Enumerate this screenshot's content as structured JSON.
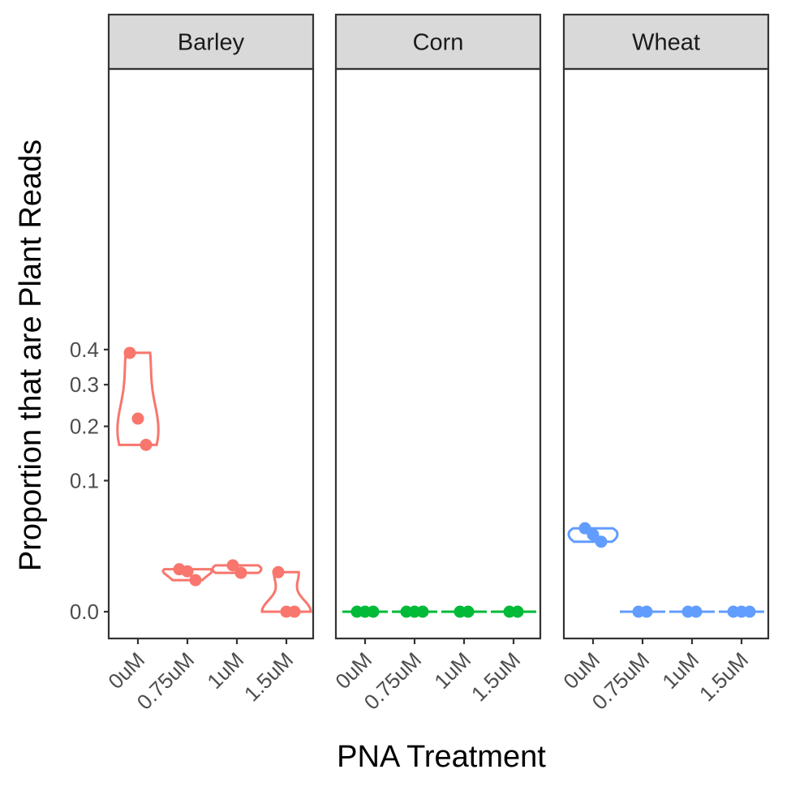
{
  "chart_data": {
    "type": "scatter",
    "overlay": "violin",
    "facets": [
      "Barley",
      "Corn",
      "Wheat"
    ],
    "categories": [
      "0uM",
      "0.75uM",
      "1uM",
      "1.5uM"
    ],
    "xlabel": "PNA Treatment",
    "ylabel": "Proportion that are Plant Reads",
    "y_scale": "sqrt",
    "ylim": [
      0,
      0.41
    ],
    "yticks": [
      0.0,
      0.1,
      0.2,
      0.3,
      0.4
    ],
    "ytick_labels": [
      "0.0",
      "0.1",
      "0.2",
      "0.3",
      "0.4"
    ],
    "grid": false,
    "legend": "none",
    "colors": {
      "Barley": "#F8766D",
      "Corn": "#00BA38",
      "Wheat": "#619CFF"
    },
    "series": [
      {
        "facet": "Barley",
        "groups": [
          {
            "category": "0uM",
            "points": [
              0.39,
              0.217,
              0.162
            ]
          },
          {
            "category": "0.75uM",
            "points": [
              0.0105,
              0.0095,
              0.0058
            ]
          },
          {
            "category": "1uM",
            "points": [
              0.0125,
              0.0088
            ]
          },
          {
            "category": "1.5uM",
            "points": [
              0.0091,
              0.0,
              0.0
            ]
          }
        ]
      },
      {
        "facet": "Corn",
        "groups": [
          {
            "category": "0uM",
            "points": [
              0.0,
              0.0,
              0.0
            ]
          },
          {
            "category": "0.75uM",
            "points": [
              0.0,
              0.0,
              0.0
            ]
          },
          {
            "category": "1uM",
            "points": [
              0.0,
              0.0
            ]
          },
          {
            "category": "1.5uM",
            "points": [
              0.0,
              0.0
            ]
          }
        ]
      },
      {
        "facet": "Wheat",
        "groups": [
          {
            "category": "0uM",
            "points": [
              0.0405,
              0.0345,
              0.0285
            ]
          },
          {
            "category": "0.75uM",
            "points": [
              0.0,
              0.0
            ]
          },
          {
            "category": "1uM",
            "points": [
              0.0,
              0.0
            ]
          },
          {
            "category": "1.5uM",
            "points": [
              0.0,
              0.0,
              0.0
            ]
          }
        ]
      }
    ]
  }
}
